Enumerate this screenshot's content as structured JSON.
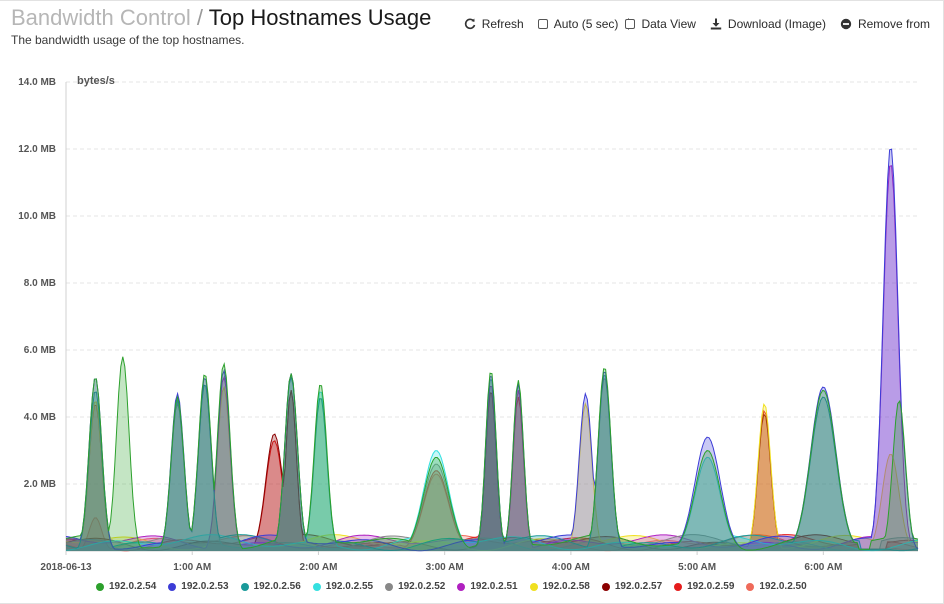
{
  "header": {
    "breadcrumb_parent": "Bandwidth Control",
    "separator": "/",
    "title": "Top Hostnames Usage",
    "subtitle": "The bandwidth usage of the top hostnames."
  },
  "toolbar": {
    "refresh_label": "Refresh",
    "refresh_icon": "refresh-icon",
    "auto_label": "Auto (5 sec)",
    "auto_checked": false,
    "dataview_label": "Data View",
    "dataview_checked": false,
    "download_label": "Download (Image)",
    "download_icon": "download-icon",
    "remove_label": "Remove from",
    "remove_icon": "minus-circle-icon"
  },
  "chart_data": {
    "type": "area",
    "ylabel": "bytes/s",
    "ylim": [
      0,
      14
    ],
    "y_unit": "MB",
    "y_ticks": [
      "14.0 MB",
      "12.0 MB",
      "10.0 MB",
      "8.0 MB",
      "6.0 MB",
      "4.0 MB",
      "2.0 MB"
    ],
    "x_ticks": [
      "2018-06-13",
      "1:00 AM",
      "2:00 AM",
      "3:00 AM",
      "4:00 AM",
      "5:00 AM",
      "6:00 AM"
    ],
    "x_tick_minutes": [
      0,
      60,
      120,
      180,
      240,
      300,
      360
    ],
    "x_range_minutes": [
      0,
      405
    ],
    "grid": true,
    "legend_position": "bottom",
    "series": [
      {
        "name": "192.0.2.54",
        "color": "#2ca02c",
        "peaks": [
          [
            14,
            5.2,
            3
          ],
          [
            27,
            5.8,
            3
          ],
          [
            53,
            4.6,
            3
          ],
          [
            66,
            5.3,
            3
          ],
          [
            75,
            5.6,
            3
          ],
          [
            107,
            5.3,
            3
          ],
          [
            121,
            5.0,
            3
          ],
          [
            176,
            2.8,
            6
          ],
          [
            202,
            5.4,
            2.5
          ],
          [
            215,
            5.1,
            2.5
          ],
          [
            256,
            5.5,
            3
          ],
          [
            305,
            3.0,
            6
          ],
          [
            360,
            4.8,
            6
          ],
          [
            396,
            4.5,
            3
          ]
        ]
      },
      {
        "name": "192.0.2.53",
        "color": "#3c3cd6",
        "peaks": [
          [
            14,
            5.2,
            3
          ],
          [
            53,
            4.7,
            3
          ],
          [
            66,
            5.2,
            3
          ],
          [
            75,
            5.4,
            3
          ],
          [
            107,
            5.3,
            3
          ],
          [
            202,
            5.3,
            2.5
          ],
          [
            215,
            5.0,
            2.5
          ],
          [
            247,
            4.7,
            3
          ],
          [
            256,
            5.4,
            3
          ],
          [
            305,
            3.4,
            6
          ],
          [
            360,
            4.9,
            6
          ],
          [
            392,
            12.1,
            3.5
          ],
          [
            396,
            4.3,
            3
          ]
        ]
      },
      {
        "name": "192.0.2.56",
        "color": "#1a9a9a",
        "peaks": [
          [
            14,
            4.8,
            3
          ],
          [
            53,
            4.5,
            3
          ],
          [
            66,
            5.0,
            3
          ],
          [
            107,
            5.2,
            3
          ],
          [
            121,
            4.6,
            3
          ],
          [
            202,
            5.2,
            2.5
          ],
          [
            256,
            5.3,
            3
          ],
          [
            360,
            4.6,
            6
          ]
        ]
      },
      {
        "name": "192.0.2.55",
        "color": "#35e0e0",
        "peaks": [
          [
            121,
            4.8,
            3
          ],
          [
            176,
            3.0,
            6
          ],
          [
            305,
            2.8,
            6
          ]
        ]
      },
      {
        "name": "192.0.2.52",
        "color": "#888888",
        "peaks": [
          [
            53,
            4.4,
            3
          ],
          [
            66,
            5.0,
            3
          ],
          [
            256,
            5.2,
            3
          ],
          [
            176,
            2.6,
            6
          ]
        ]
      },
      {
        "name": "192.0.2.51",
        "color": "#b020c0",
        "peaks": [
          [
            75,
            5.2,
            3
          ],
          [
            215,
            4.8,
            2.5
          ],
          [
            202,
            5.0,
            2.5
          ],
          [
            392,
            11.6,
            3.5
          ]
        ]
      },
      {
        "name": "192.0.2.58",
        "color": "#f0e020",
        "peaks": [
          [
            14,
            4.5,
            3
          ],
          [
            75,
            4.9,
            3
          ],
          [
            247,
            4.4,
            3
          ],
          [
            332,
            4.4,
            3
          ],
          [
            392,
            2.9,
            4
          ]
        ]
      },
      {
        "name": "192.0.2.57",
        "color": "#8b0000",
        "peaks": [
          [
            99,
            3.5,
            4
          ],
          [
            107,
            4.8,
            2.5
          ],
          [
            202,
            4.8,
            2.5
          ],
          [
            332,
            4.1,
            3
          ]
        ]
      },
      {
        "name": "192.0.2.59",
        "color": "#e51c1c",
        "peaks": [
          [
            14,
            4.4,
            3
          ],
          [
            99,
            3.3,
            4
          ],
          [
            107,
            4.8,
            2.5
          ],
          [
            176,
            2.4,
            6
          ],
          [
            202,
            4.8,
            2.5
          ],
          [
            215,
            4.6,
            2.5
          ],
          [
            332,
            4.2,
            3
          ]
        ]
      },
      {
        "name": "192.0.2.50",
        "color": "#ef6a5a",
        "peaks": [
          [
            14,
            1.0,
            3
          ],
          [
            176,
            2.3,
            6
          ]
        ]
      }
    ]
  }
}
